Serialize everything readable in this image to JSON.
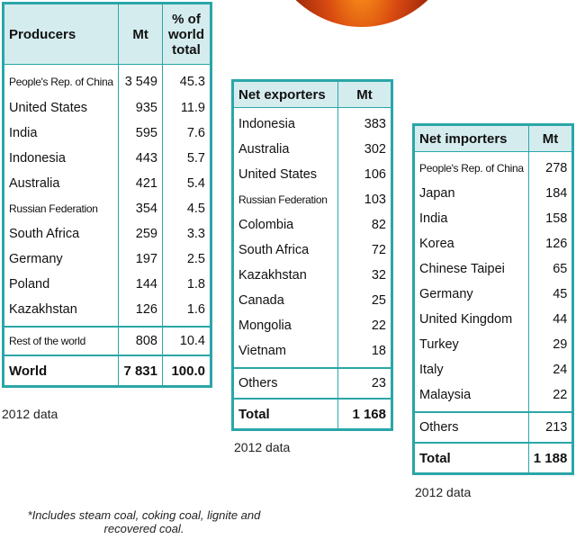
{
  "producers": {
    "headers": [
      "Producers",
      "Mt",
      "% of world total"
    ],
    "rows": [
      [
        "People's Rep. of China",
        "3 549",
        "45.3"
      ],
      [
        "United States",
        "935",
        "11.9"
      ],
      [
        "India",
        "595",
        "7.6"
      ],
      [
        "Indonesia",
        "443",
        "5.7"
      ],
      [
        "Australia",
        "421",
        "5.4"
      ],
      [
        "Russian Federation",
        "354",
        "4.5"
      ],
      [
        "South Africa",
        "259",
        "3.3"
      ],
      [
        "Germany",
        "197",
        "2.5"
      ],
      [
        "Poland",
        "144",
        "1.8"
      ],
      [
        "Kazakhstan",
        "126",
        "1.6"
      ]
    ],
    "rest": [
      "Rest of the world",
      "808",
      "10.4"
    ],
    "total": [
      "World",
      "7 831",
      "100.0"
    ],
    "caption": "2012 data"
  },
  "exporters": {
    "headers": [
      "Net exporters",
      "Mt"
    ],
    "rows": [
      [
        "Indonesia",
        "383"
      ],
      [
        "Australia",
        "302"
      ],
      [
        "United States",
        "106"
      ],
      [
        "Russian Federation",
        "103"
      ],
      [
        "Colombia",
        "82"
      ],
      [
        "South Africa",
        "72"
      ],
      [
        "Kazakhstan",
        "32"
      ],
      [
        "Canada",
        "25"
      ],
      [
        "Mongolia",
        "22"
      ],
      [
        "Vietnam",
        "18"
      ]
    ],
    "others": [
      "Others",
      "23"
    ],
    "total": [
      "Total",
      "1 168"
    ],
    "caption": "2012 data"
  },
  "importers": {
    "headers": [
      "Net importers",
      "Mt"
    ],
    "rows": [
      [
        "People's Rep. of China",
        "278"
      ],
      [
        "Japan",
        "184"
      ],
      [
        "India",
        "158"
      ],
      [
        "Korea",
        "126"
      ],
      [
        "Chinese Taipei",
        "65"
      ],
      [
        "Germany",
        "45"
      ],
      [
        "United Kingdom",
        "44"
      ],
      [
        "Turkey",
        "29"
      ],
      [
        "Italy",
        "24"
      ],
      [
        "Malaysia",
        "22"
      ]
    ],
    "others": [
      "Others",
      "213"
    ],
    "total": [
      "Total",
      "1 188"
    ],
    "caption": "2012 data"
  },
  "footnote": "*Includes steam coal, coking coal, lignite and recovered coal.",
  "colors": {
    "border": "#2aa6a8",
    "header_bg": "#d5ecef"
  }
}
